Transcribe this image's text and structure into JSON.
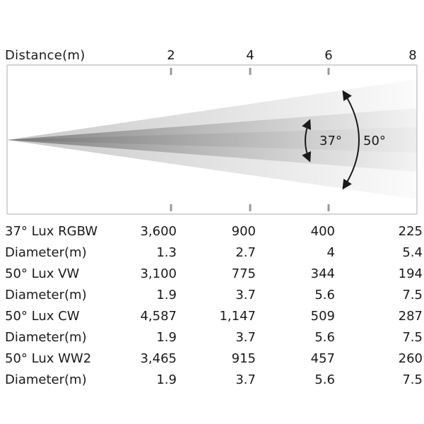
{
  "axis": {
    "title": "Distance(m)",
    "ticks": [
      "2",
      "4",
      "6",
      "8"
    ]
  },
  "beams": [
    {
      "angle_label": "37°",
      "degrees": 37
    },
    {
      "angle_label": "50°",
      "degrees": 50
    }
  ],
  "colors": {
    "beam_inner": "#9a9a9a",
    "beam_outer": "#d9d9d9",
    "frame": "#bbbbbb",
    "tick": "#999999",
    "arrow": "#1a1a1a"
  },
  "table": {
    "rows": [
      {
        "label": "37° Lux RGBW",
        "values": [
          "3,600",
          "900",
          "400",
          "225"
        ]
      },
      {
        "label": "Diameter(m)",
        "values": [
          "1.3",
          "2.7",
          "4",
          "5.4"
        ]
      },
      {
        "label": "50° Lux VW",
        "values": [
          "3,100",
          "775",
          "344",
          "194"
        ]
      },
      {
        "label": "Diameter(m)",
        "values": [
          "1.9",
          "3.7",
          "5.6",
          "7.5"
        ]
      },
      {
        "label": "50° Lux CW",
        "values": [
          "4,587",
          "1,147",
          "509",
          "287"
        ]
      },
      {
        "label": "Diameter(m)",
        "values": [
          "1.9",
          "3.7",
          "5.6",
          "7.5"
        ]
      },
      {
        "label": "50° Lux WW2",
        "values": [
          "3,465",
          "915",
          "457",
          "260"
        ]
      },
      {
        "label": "Diameter(m)",
        "values": [
          "1.9",
          "3.7",
          "5.6",
          "7.5"
        ]
      }
    ]
  }
}
